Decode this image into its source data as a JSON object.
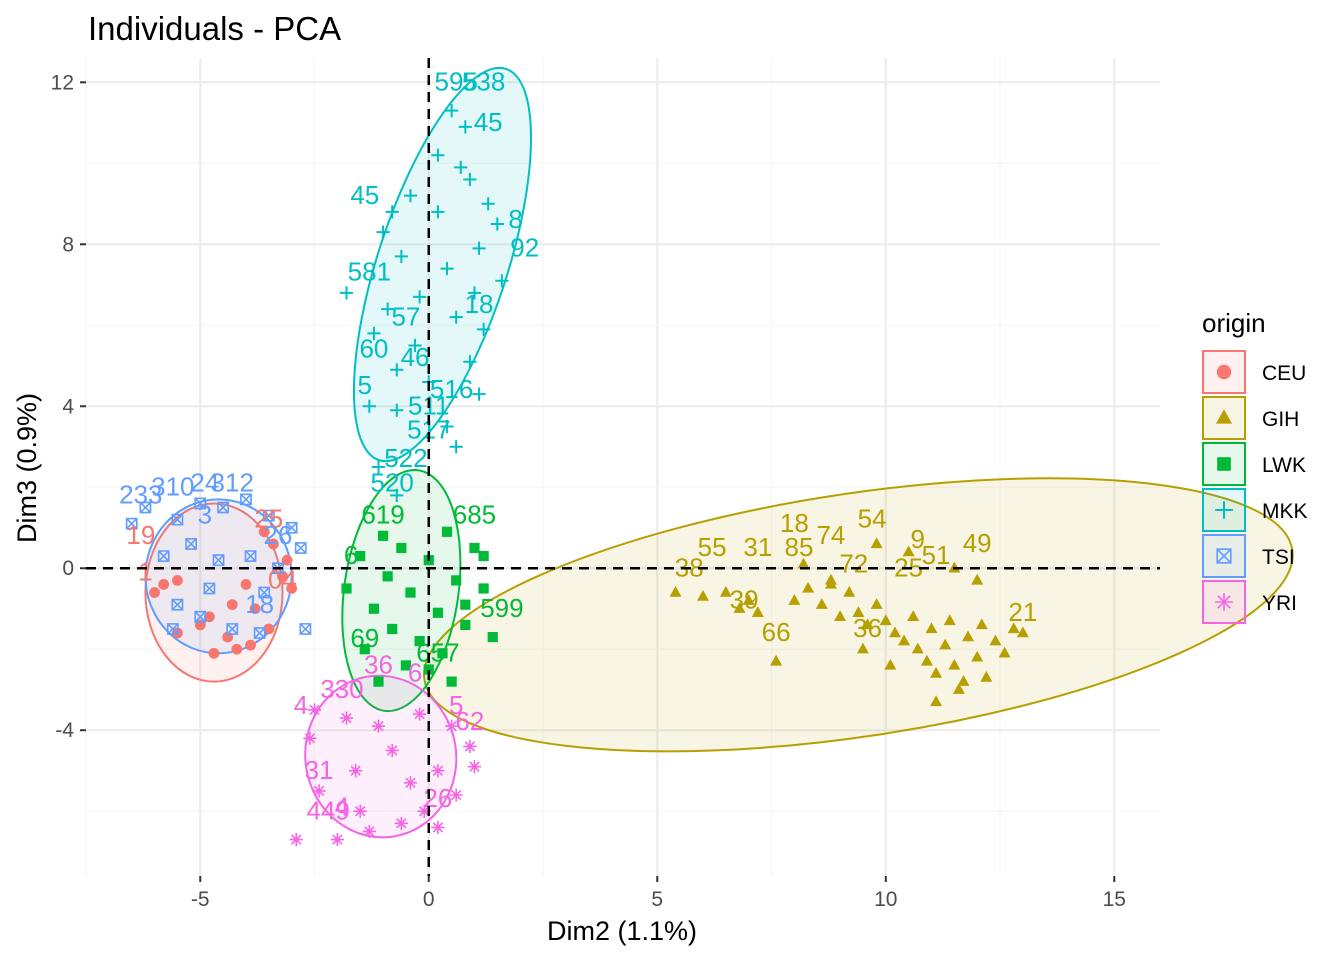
{
  "chart_data": {
    "type": "scatter",
    "title": "Individuals - PCA",
    "xlabel": "Dim2 (1.1%)",
    "ylabel": "Dim3 (0.9%)",
    "xlim": [
      -7.5,
      16
    ],
    "ylim": [
      -7.6,
      12.6
    ],
    "xticks": [
      -5,
      0,
      5,
      10,
      15
    ],
    "yticks": [
      -4,
      0,
      4,
      8,
      12
    ],
    "xtick_labels": [
      "-5",
      "0",
      "5",
      "10",
      "15"
    ],
    "ytick_labels": [
      "-4",
      "0",
      "4",
      "8",
      "12"
    ],
    "grid": true,
    "reference_lines": {
      "x": 0,
      "y": 0,
      "style": "dashed"
    },
    "legend": {
      "title": "origin",
      "position": "right"
    },
    "series": [
      {
        "name": "CEU",
        "color": "#F8766D",
        "marker": "circle",
        "ellipse": {
          "cx": -4.7,
          "cy": -0.6,
          "rx": 1.5,
          "ry": 2.2,
          "angle": 0
        },
        "points": [
          [
            -4.7,
            -2.1
          ],
          [
            -4.2,
            -2.0
          ],
          [
            -3.9,
            -1.9
          ],
          [
            -5.5,
            -1.6
          ],
          [
            -4.4,
            -1.7
          ],
          [
            -3.5,
            -1.5
          ],
          [
            -5.0,
            -1.4
          ],
          [
            -6.0,
            -0.6
          ],
          [
            -5.8,
            -0.4
          ],
          [
            -3.0,
            -0.5
          ],
          [
            -3.2,
            -0.2
          ],
          [
            -3.6,
            0.9
          ],
          [
            -3.4,
            0.6
          ],
          [
            -3.1,
            0.2
          ],
          [
            -5.5,
            -0.3
          ],
          [
            -4.3,
            -0.9
          ],
          [
            -4.8,
            -1.2
          ],
          [
            -4.0,
            -0.4
          ],
          [
            -3.8,
            -1.0
          ]
        ],
        "labels": [
          {
            "x": -6.3,
            "y": 0.6,
            "text": "19"
          },
          {
            "x": -6.2,
            "y": -0.3,
            "text": "1"
          },
          {
            "x": -3.2,
            "y": -0.5,
            "text": "04"
          },
          {
            "x": -3.5,
            "y": 1.0,
            "text": "25"
          }
        ]
      },
      {
        "name": "GIH",
        "color": "#B79F00",
        "marker": "triangle",
        "ellipse": {
          "cx": 9.4,
          "cy": -1.15,
          "rx": 9.6,
          "ry": 3.0,
          "angle": -8.5
        },
        "points": [
          [
            5.4,
            -0.6
          ],
          [
            6.0,
            -0.7
          ],
          [
            6.5,
            -0.6
          ],
          [
            6.8,
            -1.0
          ],
          [
            7.0,
            -0.8
          ],
          [
            7.2,
            -1.1
          ],
          [
            7.6,
            -2.3
          ],
          [
            8.0,
            -0.8
          ],
          [
            8.3,
            -0.5
          ],
          [
            8.6,
            -0.9
          ],
          [
            8.8,
            -0.3
          ],
          [
            9.0,
            -1.2
          ],
          [
            9.2,
            -0.6
          ],
          [
            9.4,
            -1.1
          ],
          [
            9.6,
            -1.4
          ],
          [
            9.8,
            -0.9
          ],
          [
            10.0,
            -1.3
          ],
          [
            10.2,
            -1.6
          ],
          [
            10.4,
            -1.8
          ],
          [
            10.6,
            -1.2
          ],
          [
            10.7,
            -2.0
          ],
          [
            10.9,
            -2.3
          ],
          [
            11.0,
            -1.5
          ],
          [
            11.1,
            -2.6
          ],
          [
            11.3,
            -1.9
          ],
          [
            11.5,
            -2.4
          ],
          [
            11.7,
            -2.8
          ],
          [
            11.8,
            -1.7
          ],
          [
            12.0,
            -2.2
          ],
          [
            12.1,
            -1.4
          ],
          [
            12.2,
            -2.7
          ],
          [
            12.4,
            -1.8
          ],
          [
            12.6,
            -2.1
          ],
          [
            12.8,
            -1.5
          ],
          [
            13.0,
            -1.6
          ],
          [
            9.8,
            0.6
          ],
          [
            10.5,
            0.4
          ],
          [
            11.5,
            0.0
          ],
          [
            12.0,
            -0.3
          ],
          [
            11.1,
            -3.3
          ],
          [
            11.6,
            -3.0
          ],
          [
            8.2,
            0.1
          ],
          [
            8.8,
            -0.4
          ],
          [
            9.5,
            -2.0
          ],
          [
            10.1,
            -2.4
          ],
          [
            11.4,
            -1.3
          ]
        ],
        "labels": [
          {
            "x": 9.7,
            "y": 1.0,
            "text": "54"
          },
          {
            "x": 10.7,
            "y": 0.5,
            "text": "9"
          },
          {
            "x": 12.0,
            "y": 0.4,
            "text": "49"
          },
          {
            "x": 8.0,
            "y": 0.9,
            "text": "18"
          },
          {
            "x": 8.8,
            "y": 0.6,
            "text": "74"
          },
          {
            "x": 6.2,
            "y": 0.3,
            "text": "55"
          },
          {
            "x": 7.2,
            "y": 0.3,
            "text": "31"
          },
          {
            "x": 5.7,
            "y": -0.2,
            "text": "38"
          },
          {
            "x": 6.9,
            "y": -1.0,
            "text": "39"
          },
          {
            "x": 7.6,
            "y": -1.8,
            "text": "66"
          },
          {
            "x": 8.1,
            "y": 0.3,
            "text": "85"
          },
          {
            "x": 9.3,
            "y": -0.1,
            "text": "72"
          },
          {
            "x": 11.1,
            "y": 0.1,
            "text": "51"
          },
          {
            "x": 10.5,
            "y": -0.2,
            "text": "25"
          },
          {
            "x": 9.6,
            "y": -1.7,
            "text": "36"
          },
          {
            "x": 13.0,
            "y": -1.3,
            "text": "21"
          }
        ]
      },
      {
        "name": "LWK",
        "color": "#00BA38",
        "marker": "square",
        "ellipse": {
          "cx": -0.6,
          "cy": -0.55,
          "rx": 1.25,
          "ry": 3.0,
          "angle": 8
        },
        "points": [
          [
            -1.8,
            -0.5
          ],
          [
            -1.5,
            0.3
          ],
          [
            -1.2,
            -1.0
          ],
          [
            -1.0,
            0.8
          ],
          [
            -0.8,
            -1.5
          ],
          [
            -0.6,
            0.5
          ],
          [
            -0.4,
            -0.6
          ],
          [
            -0.2,
            -1.8
          ],
          [
            0.0,
            0.2
          ],
          [
            0.2,
            -1.1
          ],
          [
            0.4,
            0.9
          ],
          [
            0.6,
            -0.3
          ],
          [
            0.8,
            -1.4
          ],
          [
            1.0,
            0.5
          ],
          [
            1.2,
            -0.5
          ],
          [
            1.4,
            -1.7
          ],
          [
            -1.4,
            -2.0
          ],
          [
            -0.5,
            -2.4
          ],
          [
            0.3,
            -2.1
          ],
          [
            0.8,
            -0.9
          ],
          [
            -0.9,
            -0.2
          ],
          [
            1.2,
            0.3
          ],
          [
            0.5,
            -2.8
          ],
          [
            -1.1,
            -2.8
          ],
          [
            0.0,
            -2.5
          ]
        ],
        "labels": [
          {
            "x": 1.0,
            "y": 1.1,
            "text": "685"
          },
          {
            "x": 1.6,
            "y": -1.2,
            "text": "599"
          },
          {
            "x": 0.2,
            "y": -2.3,
            "text": "657"
          },
          {
            "x": -1.4,
            "y": -1.95,
            "text": "69"
          },
          {
            "x": -1.0,
            "y": 1.1,
            "text": "619"
          },
          {
            "x": -1.7,
            "y": 0.1,
            "text": "6"
          }
        ]
      },
      {
        "name": "MKK",
        "color": "#00BFC4",
        "marker": "plus",
        "ellipse": {
          "cx": 0.3,
          "cy": 7.5,
          "rx": 4.5,
          "ry": 1.6,
          "angle": -72
        },
        "points": [
          [
            0.5,
            11.3
          ],
          [
            0.8,
            10.9
          ],
          [
            0.2,
            10.2
          ],
          [
            0.9,
            9.6
          ],
          [
            1.3,
            9.0
          ],
          [
            -0.4,
            9.2
          ],
          [
            -0.8,
            8.8
          ],
          [
            1.5,
            8.5
          ],
          [
            -1.0,
            8.3
          ],
          [
            1.1,
            7.9
          ],
          [
            -0.6,
            7.7
          ],
          [
            0.4,
            7.4
          ],
          [
            1.6,
            7.1
          ],
          [
            -1.8,
            6.8
          ],
          [
            1.0,
            6.8
          ],
          [
            -0.9,
            6.4
          ],
          [
            0.6,
            6.2
          ],
          [
            -1.2,
            5.8
          ],
          [
            1.2,
            5.9
          ],
          [
            -0.3,
            5.5
          ],
          [
            0.9,
            5.1
          ],
          [
            -0.7,
            4.9
          ],
          [
            0.0,
            4.6
          ],
          [
            1.1,
            4.3
          ],
          [
            -1.3,
            4.0
          ],
          [
            -0.7,
            3.9
          ],
          [
            0.4,
            3.5
          ],
          [
            0.6,
            3.0
          ],
          [
            -0.7,
            1.8
          ],
          [
            -1.1,
            2.5
          ],
          [
            0.2,
            8.8
          ],
          [
            -0.2,
            6.7
          ],
          [
            0.7,
            9.9
          ]
        ],
        "labels": [
          {
            "x": 0.6,
            "y": 11.8,
            "text": "595"
          },
          {
            "x": 1.2,
            "y": 11.8,
            "text": "538"
          },
          {
            "x": -1.3,
            "y": 7.1,
            "text": "581"
          },
          {
            "x": -0.5,
            "y": 6.0,
            "text": "57"
          },
          {
            "x": -0.3,
            "y": 5.0,
            "text": "46"
          },
          {
            "x": 0.5,
            "y": 4.2,
            "text": "516"
          },
          {
            "x": 0.0,
            "y": 3.2,
            "text": "517"
          },
          {
            "x": 1.9,
            "y": 8.4,
            "text": "8"
          },
          {
            "x": 2.1,
            "y": 7.7,
            "text": "92"
          },
          {
            "x": -0.5,
            "y": 2.5,
            "text": "522"
          },
          {
            "x": -1.4,
            "y": 4.3,
            "text": "5"
          },
          {
            "x": -0.8,
            "y": 1.9,
            "text": "520"
          },
          {
            "x": 1.3,
            "y": 10.8,
            "text": "45"
          },
          {
            "x": 1.1,
            "y": 6.3,
            "text": "18"
          },
          {
            "x": -1.4,
            "y": 9.0,
            "text": "45"
          },
          {
            "x": 0.0,
            "y": 3.8,
            "text": "511"
          },
          {
            "x": -1.2,
            "y": 5.2,
            "text": "60"
          }
        ]
      },
      {
        "name": "TSI",
        "color": "#619CFF",
        "marker": "square-cross",
        "ellipse": {
          "cx": -4.6,
          "cy": -0.2,
          "rx": 1.6,
          "ry": 1.9,
          "angle": 0
        },
        "points": [
          [
            -6.5,
            1.1
          ],
          [
            -6.2,
            1.5
          ],
          [
            -5.5,
            1.2
          ],
          [
            -5.0,
            1.6
          ],
          [
            -4.5,
            1.5
          ],
          [
            -4.0,
            1.7
          ],
          [
            -3.5,
            1.3
          ],
          [
            -3.0,
            1.0
          ],
          [
            -2.8,
            0.5
          ],
          [
            -5.8,
            0.3
          ],
          [
            -5.2,
            0.6
          ],
          [
            -4.6,
            0.2
          ],
          [
            -3.9,
            0.3
          ],
          [
            -3.3,
            0.0
          ],
          [
            -5.5,
            -0.9
          ],
          [
            -5.0,
            -1.2
          ],
          [
            -4.3,
            -1.5
          ],
          [
            -3.7,
            -1.6
          ],
          [
            -2.7,
            -1.5
          ],
          [
            -5.6,
            -1.5
          ],
          [
            -4.8,
            -0.5
          ],
          [
            -3.6,
            -0.6
          ]
        ],
        "labels": [
          {
            "x": -6.3,
            "y": 1.6,
            "text": "233"
          },
          {
            "x": -5.6,
            "y": 1.8,
            "text": "310"
          },
          {
            "x": -4.9,
            "y": 1.9,
            "text": "24"
          },
          {
            "x": -4.3,
            "y": 1.9,
            "text": "312"
          },
          {
            "x": -3.3,
            "y": 0.6,
            "text": "26"
          },
          {
            "x": -3.7,
            "y": -1.1,
            "text": "18"
          },
          {
            "x": -4.9,
            "y": 1.1,
            "text": "3"
          }
        ]
      },
      {
        "name": "YRI",
        "color": "#F564E3",
        "marker": "star",
        "ellipse": {
          "cx": -1.05,
          "cy": -4.65,
          "rx": 1.65,
          "ry": 2.0,
          "angle": -10
        },
        "points": [
          [
            -2.9,
            -6.7
          ],
          [
            -2.0,
            -6.7
          ],
          [
            -1.3,
            -6.5
          ],
          [
            -0.6,
            -6.3
          ],
          [
            0.2,
            -6.4
          ],
          [
            -2.4,
            -5.5
          ],
          [
            -2.6,
            -4.2
          ],
          [
            -1.8,
            -3.7
          ],
          [
            -1.1,
            -3.9
          ],
          [
            -0.2,
            -3.6
          ],
          [
            0.5,
            -3.9
          ],
          [
            0.9,
            -4.4
          ],
          [
            1.0,
            -4.9
          ],
          [
            0.6,
            -5.6
          ],
          [
            -0.4,
            -5.3
          ],
          [
            -1.6,
            -5.0
          ],
          [
            -2.5,
            -3.5
          ],
          [
            -0.8,
            -4.5
          ],
          [
            0.2,
            -5.0
          ],
          [
            -1.5,
            -6.0
          ],
          [
            -0.1,
            -6.0
          ]
        ],
        "labels": [
          {
            "x": -2.2,
            "y": -6.2,
            "text": "449"
          },
          {
            "x": -1.9,
            "y": -3.2,
            "text": "330"
          },
          {
            "x": -2.4,
            "y": -5.2,
            "text": "31"
          },
          {
            "x": 0.9,
            "y": -4.0,
            "text": "62"
          },
          {
            "x": 0.2,
            "y": -5.9,
            "text": "26"
          },
          {
            "x": -1.1,
            "y": -2.6,
            "text": "36"
          },
          {
            "x": -0.3,
            "y": -2.8,
            "text": "6"
          },
          {
            "x": -2.8,
            "y": -3.6,
            "text": "4"
          },
          {
            "x": -1.9,
            "y": -6.1,
            "text": "4"
          },
          {
            "x": 0.6,
            "y": -3.6,
            "text": "5"
          }
        ]
      }
    ]
  }
}
